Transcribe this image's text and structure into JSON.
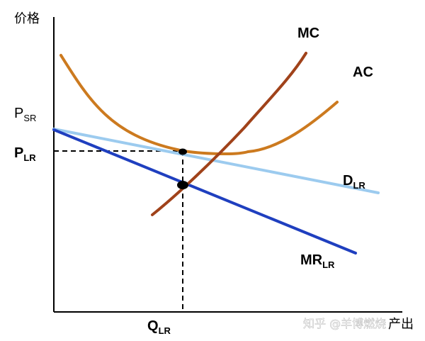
{
  "axes": {
    "y_label": "价格",
    "x_label": "产出"
  },
  "curves": {
    "mc": {
      "label": "MC",
      "color": "#a0421a"
    },
    "ac": {
      "label": "AC",
      "color": "#cc7a1f"
    },
    "demand": {
      "label_main": "D",
      "label_sub": "LR",
      "color": "#9ccbef"
    },
    "mr": {
      "label_main": "MR",
      "label_sub": "LR",
      "color": "#1f3fbf"
    }
  },
  "price_labels": {
    "p_sr": {
      "main": "P",
      "sub": "SR"
    },
    "p_lr": {
      "main": "P",
      "sub": "LR"
    }
  },
  "quantity_label": {
    "main": "Q",
    "sub": "LR"
  },
  "watermark": "知乎 @羊博燃烧"
}
